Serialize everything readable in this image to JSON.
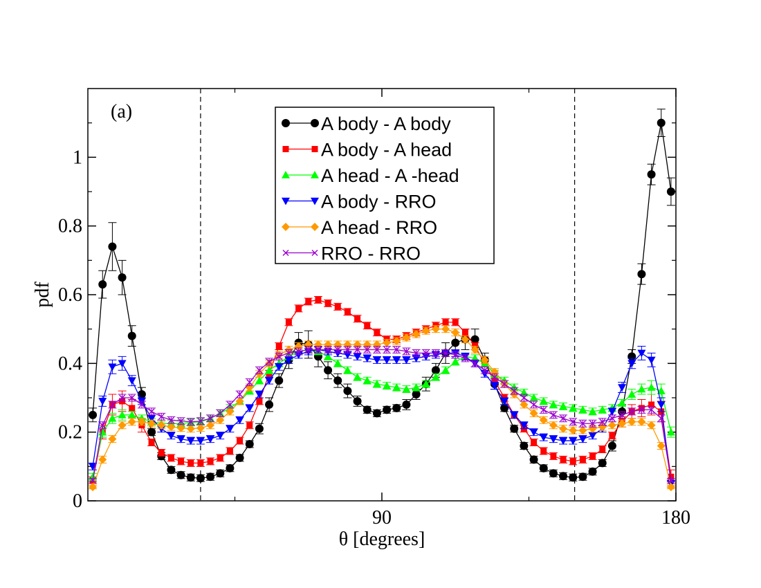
{
  "chart_data": {
    "type": "line",
    "panel_label": "(a)",
    "xlabel": "θ [degrees]",
    "ylabel": "pdf",
    "xlim": [
      0,
      180
    ],
    "ylim": [
      0,
      1.2
    ],
    "x_ticks": [
      {
        "value": 90,
        "label": "90"
      },
      {
        "value": 180,
        "label": "180"
      }
    ],
    "y_ticks": [
      {
        "value": 0,
        "label": "0"
      },
      {
        "value": 0.2,
        "label": "0.2"
      },
      {
        "value": 0.4,
        "label": "0.4"
      },
      {
        "value": 0.6,
        "label": "0.6"
      },
      {
        "value": 0.8,
        "label": "0.8"
      },
      {
        "value": 1.0,
        "label": "1"
      }
    ],
    "vertical_reference_lines": [
      34.5,
      149
    ],
    "legend_position": "top-center",
    "x": [
      1.5,
      4.5,
      7.5,
      10.5,
      13.5,
      16.5,
      19.5,
      22.5,
      25.5,
      28.5,
      31.5,
      34.5,
      37.5,
      40.5,
      43.5,
      46.5,
      49.5,
      52.5,
      55.5,
      58.5,
      61.5,
      64.5,
      67.5,
      70.5,
      73.5,
      76.5,
      79.5,
      82.5,
      85.5,
      88.5,
      91.5,
      94.5,
      97.5,
      100.5,
      103.5,
      106.5,
      109.5,
      112.5,
      115.5,
      118.5,
      121.5,
      124.5,
      127.5,
      130.5,
      133.5,
      136.5,
      139.5,
      142.5,
      145.5,
      148.5,
      151.5,
      154.5,
      157.5,
      160.5,
      163.5,
      166.5,
      169.5,
      172.5,
      175.5,
      178.5
    ],
    "series": [
      {
        "name": "A body - A body",
        "color": "#000000",
        "marker": "circle",
        "values": [
          0.25,
          0.63,
          0.74,
          0.65,
          0.48,
          0.31,
          0.2,
          0.13,
          0.09,
          0.075,
          0.068,
          0.066,
          0.07,
          0.08,
          0.095,
          0.125,
          0.165,
          0.21,
          0.28,
          0.35,
          0.41,
          0.46,
          0.455,
          0.42,
          0.38,
          0.35,
          0.32,
          0.29,
          0.265,
          0.255,
          0.265,
          0.27,
          0.28,
          0.31,
          0.34,
          0.38,
          0.43,
          0.46,
          0.47,
          0.47,
          0.41,
          0.34,
          0.27,
          0.21,
          0.16,
          0.12,
          0.095,
          0.08,
          0.072,
          0.068,
          0.07,
          0.085,
          0.11,
          0.16,
          0.26,
          0.42,
          0.66,
          0.95,
          1.1,
          0.9
        ],
        "errors": [
          0.02,
          0.04,
          0.07,
          0.05,
          0.03,
          0.02,
          0.01,
          0.01,
          0.01,
          0.01,
          0.01,
          0.01,
          0.01,
          0.01,
          0.01,
          0.01,
          0.01,
          0.015,
          0.02,
          0.02,
          0.025,
          0.03,
          0.04,
          0.03,
          0.025,
          0.02,
          0.02,
          0.015,
          0.01,
          0.01,
          0.01,
          0.01,
          0.015,
          0.015,
          0.02,
          0.02,
          0.03,
          0.03,
          0.03,
          0.03,
          0.02,
          0.015,
          0.01,
          0.01,
          0.01,
          0.01,
          0.01,
          0.01,
          0.01,
          0.01,
          0.01,
          0.01,
          0.01,
          0.015,
          0.02,
          0.02,
          0.03,
          0.03,
          0.04,
          0.04
        ]
      },
      {
        "name": "A body - A head",
        "color": "#ff0000",
        "marker": "square",
        "values": [
          0.06,
          0.2,
          0.28,
          0.29,
          0.27,
          0.22,
          0.17,
          0.14,
          0.125,
          0.115,
          0.11,
          0.11,
          0.115,
          0.125,
          0.145,
          0.175,
          0.22,
          0.29,
          0.37,
          0.45,
          0.52,
          0.56,
          0.58,
          0.585,
          0.575,
          0.565,
          0.55,
          0.53,
          0.51,
          0.49,
          0.47,
          0.47,
          0.48,
          0.49,
          0.5,
          0.51,
          0.52,
          0.52,
          0.49,
          0.45,
          0.4,
          0.35,
          0.3,
          0.25,
          0.21,
          0.17,
          0.145,
          0.13,
          0.12,
          0.115,
          0.12,
          0.13,
          0.15,
          0.19,
          0.23,
          0.26,
          0.27,
          0.28,
          0.26,
          0.07
        ],
        "errors": [
          0.01,
          0.02,
          0.03,
          0.03,
          0.025,
          0.02,
          0.01,
          0.01,
          0.01,
          0.01,
          0.01,
          0.01,
          0.01,
          0.01,
          0.01,
          0.01,
          0.01,
          0.01,
          0.01,
          0.01,
          0.01,
          0.01,
          0.01,
          0.01,
          0.01,
          0.01,
          0.01,
          0.01,
          0.01,
          0.01,
          0.01,
          0.01,
          0.01,
          0.01,
          0.01,
          0.01,
          0.01,
          0.01,
          0.01,
          0.01,
          0.01,
          0.01,
          0.01,
          0.01,
          0.01,
          0.01,
          0.01,
          0.01,
          0.01,
          0.01,
          0.01,
          0.01,
          0.01,
          0.01,
          0.015,
          0.02,
          0.025,
          0.03,
          0.03,
          0.02
        ]
      },
      {
        "name": "A head - A -head",
        "color": "#00ff00",
        "marker": "triangle-up",
        "values": [
          0.07,
          0.2,
          0.24,
          0.25,
          0.25,
          0.24,
          0.23,
          0.225,
          0.225,
          0.225,
          0.228,
          0.23,
          0.24,
          0.255,
          0.27,
          0.29,
          0.32,
          0.35,
          0.38,
          0.4,
          0.42,
          0.435,
          0.44,
          0.435,
          0.42,
          0.4,
          0.38,
          0.36,
          0.35,
          0.34,
          0.335,
          0.33,
          0.325,
          0.33,
          0.34,
          0.36,
          0.38,
          0.405,
          0.42,
          0.415,
          0.4,
          0.37,
          0.35,
          0.33,
          0.315,
          0.3,
          0.29,
          0.28,
          0.275,
          0.27,
          0.265,
          0.26,
          0.265,
          0.27,
          0.285,
          0.31,
          0.325,
          0.33,
          0.32,
          0.2
        ],
        "errors": [
          0.01,
          0.015,
          0.015,
          0.015,
          0.01,
          0.01,
          0.01,
          0.01,
          0.01,
          0.01,
          0.01,
          0.01,
          0.01,
          0.01,
          0.01,
          0.01,
          0.01,
          0.01,
          0.01,
          0.01,
          0.01,
          0.01,
          0.01,
          0.01,
          0.01,
          0.01,
          0.01,
          0.01,
          0.01,
          0.01,
          0.01,
          0.01,
          0.01,
          0.01,
          0.01,
          0.01,
          0.01,
          0.01,
          0.01,
          0.01,
          0.01,
          0.01,
          0.01,
          0.01,
          0.01,
          0.01,
          0.01,
          0.01,
          0.01,
          0.01,
          0.01,
          0.01,
          0.01,
          0.01,
          0.01,
          0.015,
          0.015,
          0.02,
          0.02,
          0.015
        ]
      },
      {
        "name": "A body - RRO",
        "color": "#0000ff",
        "marker": "triangle-down",
        "values": [
          0.1,
          0.29,
          0.39,
          0.4,
          0.35,
          0.29,
          0.24,
          0.21,
          0.19,
          0.18,
          0.175,
          0.175,
          0.18,
          0.19,
          0.21,
          0.235,
          0.27,
          0.31,
          0.35,
          0.39,
          0.41,
          0.425,
          0.435,
          0.44,
          0.435,
          0.43,
          0.425,
          0.42,
          0.415,
          0.41,
          0.41,
          0.41,
          0.41,
          0.415,
          0.42,
          0.425,
          0.43,
          0.43,
          0.42,
          0.4,
          0.37,
          0.335,
          0.29,
          0.25,
          0.22,
          0.2,
          0.185,
          0.18,
          0.175,
          0.175,
          0.18,
          0.19,
          0.21,
          0.26,
          0.33,
          0.4,
          0.43,
          0.41,
          0.28,
          0.05
        ],
        "errors": [
          0.01,
          0.015,
          0.02,
          0.02,
          0.015,
          0.01,
          0.01,
          0.01,
          0.01,
          0.01,
          0.01,
          0.01,
          0.01,
          0.01,
          0.01,
          0.01,
          0.01,
          0.01,
          0.01,
          0.01,
          0.01,
          0.01,
          0.01,
          0.01,
          0.01,
          0.01,
          0.01,
          0.01,
          0.01,
          0.01,
          0.01,
          0.01,
          0.01,
          0.01,
          0.01,
          0.01,
          0.01,
          0.01,
          0.01,
          0.01,
          0.01,
          0.01,
          0.01,
          0.01,
          0.01,
          0.01,
          0.01,
          0.01,
          0.01,
          0.01,
          0.01,
          0.01,
          0.01,
          0.01,
          0.015,
          0.015,
          0.02,
          0.02,
          0.02,
          0.01
        ]
      },
      {
        "name": "A head - RRO",
        "color": "#ff9900",
        "marker": "diamond",
        "values": [
          0.04,
          0.12,
          0.18,
          0.22,
          0.23,
          0.23,
          0.225,
          0.22,
          0.215,
          0.212,
          0.21,
          0.212,
          0.22,
          0.235,
          0.26,
          0.29,
          0.33,
          0.37,
          0.4,
          0.425,
          0.44,
          0.45,
          0.455,
          0.455,
          0.455,
          0.455,
          0.455,
          0.455,
          0.455,
          0.455,
          0.46,
          0.465,
          0.475,
          0.485,
          0.495,
          0.5,
          0.5,
          0.49,
          0.47,
          0.44,
          0.41,
          0.375,
          0.34,
          0.31,
          0.28,
          0.255,
          0.235,
          0.22,
          0.21,
          0.205,
          0.205,
          0.21,
          0.215,
          0.22,
          0.225,
          0.23,
          0.23,
          0.22,
          0.16,
          0.04
        ],
        "errors": [
          0.005,
          0.01,
          0.01,
          0.01,
          0.01,
          0.01,
          0.01,
          0.01,
          0.01,
          0.01,
          0.01,
          0.01,
          0.01,
          0.01,
          0.01,
          0.01,
          0.01,
          0.01,
          0.01,
          0.01,
          0.01,
          0.01,
          0.01,
          0.01,
          0.01,
          0.01,
          0.01,
          0.01,
          0.01,
          0.01,
          0.01,
          0.01,
          0.01,
          0.01,
          0.01,
          0.01,
          0.01,
          0.01,
          0.01,
          0.01,
          0.01,
          0.01,
          0.01,
          0.01,
          0.01,
          0.01,
          0.01,
          0.01,
          0.01,
          0.01,
          0.01,
          0.01,
          0.01,
          0.01,
          0.01,
          0.01,
          0.01,
          0.01,
          0.01,
          0.005
        ]
      },
      {
        "name": "RRO - RRO",
        "color": "#9900cc",
        "marker": "x",
        "values": [
          0.06,
          0.22,
          0.28,
          0.3,
          0.3,
          0.28,
          0.26,
          0.245,
          0.235,
          0.232,
          0.23,
          0.232,
          0.24,
          0.255,
          0.28,
          0.31,
          0.345,
          0.38,
          0.405,
          0.42,
          0.43,
          0.435,
          0.44,
          0.44,
          0.44,
          0.44,
          0.44,
          0.44,
          0.44,
          0.44,
          0.44,
          0.44,
          0.435,
          0.43,
          0.43,
          0.43,
          0.43,
          0.425,
          0.415,
          0.4,
          0.38,
          0.36,
          0.34,
          0.32,
          0.3,
          0.28,
          0.265,
          0.25,
          0.24,
          0.23,
          0.225,
          0.225,
          0.23,
          0.24,
          0.25,
          0.26,
          0.265,
          0.265,
          0.24,
          0.06
        ],
        "errors": [
          0.005,
          0.01,
          0.01,
          0.01,
          0.01,
          0.01,
          0.01,
          0.01,
          0.01,
          0.01,
          0.01,
          0.01,
          0.01,
          0.01,
          0.01,
          0.01,
          0.01,
          0.01,
          0.01,
          0.01,
          0.01,
          0.01,
          0.01,
          0.01,
          0.01,
          0.01,
          0.01,
          0.01,
          0.01,
          0.01,
          0.01,
          0.01,
          0.01,
          0.01,
          0.01,
          0.01,
          0.01,
          0.01,
          0.01,
          0.01,
          0.01,
          0.01,
          0.01,
          0.01,
          0.01,
          0.01,
          0.01,
          0.01,
          0.01,
          0.01,
          0.01,
          0.01,
          0.01,
          0.01,
          0.01,
          0.01,
          0.01,
          0.01,
          0.01,
          0.005
        ]
      }
    ]
  }
}
